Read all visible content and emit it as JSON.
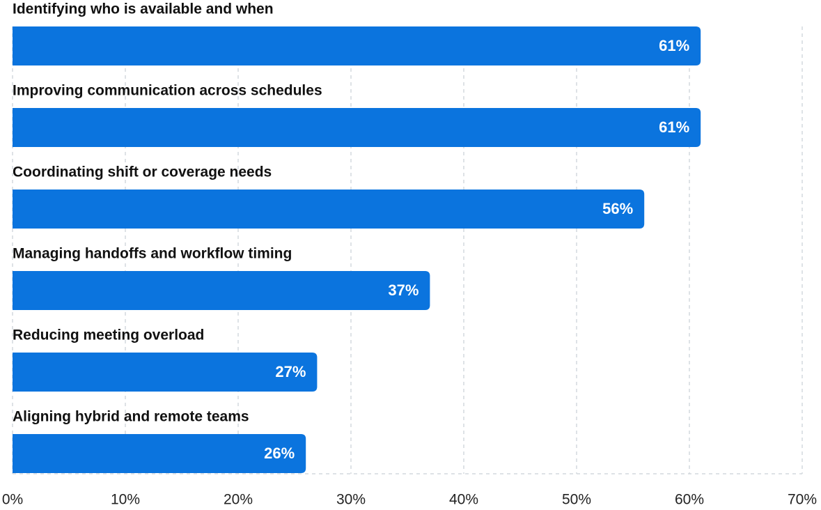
{
  "chart_data": {
    "type": "bar",
    "orientation": "horizontal",
    "categories": [
      "Identifying who is available and when",
      "Improving communication across schedules",
      "Coordinating shift or coverage needs",
      "Managing handoffs and workflow timing",
      "Reducing meeting overload",
      "Aligning hybrid and remote teams"
    ],
    "values": [
      61,
      61,
      56,
      37,
      27,
      26
    ],
    "value_labels": [
      "61%",
      "61%",
      "56%",
      "37%",
      "27%",
      "26%"
    ],
    "color": "#0b74de",
    "xlim": [
      0,
      70
    ],
    "xticks": [
      {
        "value": 0,
        "label": "0%"
      },
      {
        "value": 10,
        "label": "10%"
      },
      {
        "value": 20,
        "label": "20%"
      },
      {
        "value": 30,
        "label": "30%"
      },
      {
        "value": 40,
        "label": "40%"
      },
      {
        "value": 50,
        "label": "50%"
      },
      {
        "value": 60,
        "label": "60%"
      },
      {
        "value": 70,
        "label": "70%"
      }
    ],
    "grid": true
  }
}
